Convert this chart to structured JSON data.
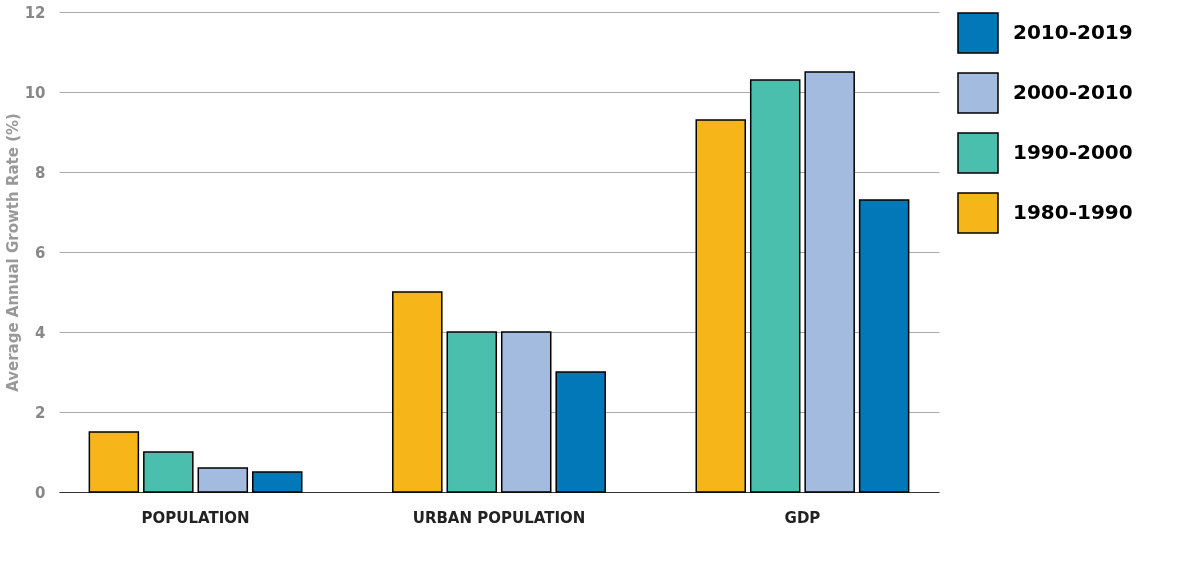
{
  "chart_data": {
    "type": "bar",
    "ylabel": "Average Annual Growth Rate (%)",
    "categories": [
      "POPULATION",
      "URBAN POPULATION",
      "GDP"
    ],
    "series": [
      {
        "name": "1980-1990",
        "color": "#f6b519",
        "values": [
          1.5,
          5,
          9.3
        ]
      },
      {
        "name": "1990-2000",
        "color": "#4bbfad",
        "values": [
          1.0,
          4,
          10.3
        ]
      },
      {
        "name": "2000-2010",
        "color": "#a3bbde",
        "values": [
          0.6,
          4,
          10.5
        ]
      },
      {
        "name": "2010-2019",
        "color": "#0278b8",
        "values": [
          0.5,
          3,
          7.3
        ]
      }
    ],
    "ylim": [
      0,
      12
    ],
    "yticks": [
      0,
      2,
      4,
      6,
      8,
      10,
      12
    ],
    "grid": "y",
    "legend": "top right"
  }
}
